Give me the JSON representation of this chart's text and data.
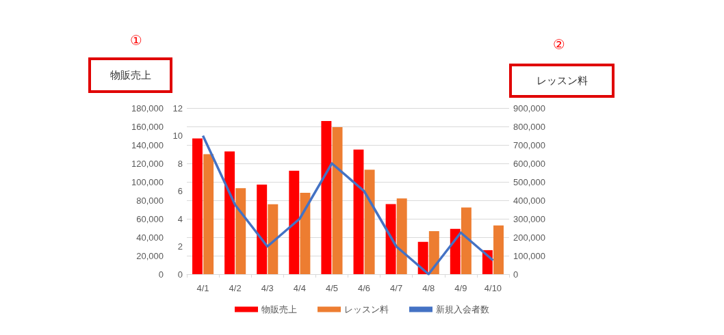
{
  "chart_data": {
    "type": "bar",
    "categories": [
      "4/1",
      "4/2",
      "4/3",
      "4/4",
      "4/5",
      "4/6",
      "4/7",
      "4/8",
      "4/9",
      "4/10"
    ],
    "series": [
      {
        "name": "物販売上",
        "axis": "y",
        "color": "#ff0000",
        "values": [
          147000,
          133000,
          97000,
          112000,
          166000,
          135000,
          76000,
          35000,
          49000,
          26000
        ]
      },
      {
        "name": "レッスン料",
        "axis": "y2",
        "color": "#ed7d31",
        "values": [
          650000,
          466000,
          379000,
          441000,
          796000,
          566000,
          410000,
          233000,
          361000,
          264000
        ]
      },
      {
        "name": "新規入会者数",
        "type": "line",
        "axis": "y3",
        "color": "#4472c4",
        "values": [
          10,
          5,
          2,
          4,
          8,
          6,
          2,
          0,
          3,
          1
        ]
      }
    ],
    "ylim": [
      0,
      180000
    ],
    "yticks": [
      0,
      {
        "value": 20000,
        "label": "20,000"
      },
      {
        "value": 40000,
        "label": "40,000"
      },
      {
        "value": 60000,
        "label": "60,000"
      },
      {
        "value": 80000,
        "label": "80,000"
      },
      {
        "value": 100000,
        "label": "100,000"
      },
      {
        "value": 120000,
        "label": "120,000"
      },
      {
        "value": 140000,
        "label": "140,000"
      },
      {
        "value": 160000,
        "label": "160,000"
      },
      {
        "value": 180000,
        "label": "180,000"
      }
    ],
    "y2lim": [
      0,
      900000
    ],
    "y2ticks": [
      0,
      {
        "value": 100000,
        "label": "100,000"
      },
      {
        "value": 200000,
        "label": "200,000"
      },
      {
        "value": 300000,
        "label": "300,000"
      },
      {
        "value": 400000,
        "label": "400,000"
      },
      {
        "value": 500000,
        "label": "500,000"
      },
      {
        "value": 600000,
        "label": "600,000"
      },
      {
        "value": 700000,
        "label": "700,000"
      },
      {
        "value": 800000,
        "label": "800,000"
      },
      {
        "value": 900000,
        "label": "900,000"
      }
    ],
    "y3lim": [
      0,
      12
    ],
    "y3ticks": [
      0,
      2,
      4,
      6,
      8,
      10,
      12
    ],
    "grid": "y",
    "legend": "bottom",
    "marker": "none",
    "annotations": [
      "①",
      "物販売上",
      "②",
      "レッスン料"
    ]
  }
}
